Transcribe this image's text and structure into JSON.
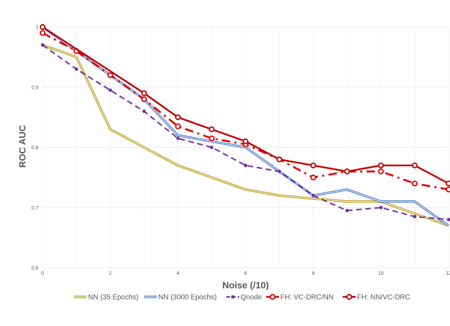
{
  "chart_data": {
    "type": "line",
    "title": "",
    "xlabel": "Noise (/10)",
    "ylabel": "ROC AUC",
    "xlim": [
      0,
      12
    ],
    "ylim": [
      0.6,
      1.0
    ],
    "x_ticks": [
      0,
      2,
      4,
      6,
      8,
      10,
      12
    ],
    "y_ticks": [
      0.6,
      0.7,
      0.8,
      0.9,
      1.0
    ],
    "y_tick_labels": [
      "0.6",
      "0.7",
      "0.8",
      "0.9",
      "1"
    ],
    "grid": true,
    "legend_position": "bottom",
    "series": [
      {
        "name": "NN (35 Epochs)",
        "color": "#b8960c",
        "style": "double",
        "x": [
          0,
          1,
          2,
          3,
          4,
          5,
          6,
          7,
          8,
          9,
          10,
          11,
          12
        ],
        "values": [
          0.97,
          0.95,
          0.83,
          0.8,
          0.77,
          0.75,
          0.73,
          0.72,
          0.715,
          0.71,
          0.71,
          0.69,
          0.67
        ]
      },
      {
        "name": "NN (3000 Epochs)",
        "color": "#4472c4",
        "style": "double",
        "x": [
          0,
          1,
          2,
          3,
          4,
          5,
          6,
          7,
          8,
          9,
          10,
          11,
          12
        ],
        "values": [
          1.0,
          0.96,
          0.92,
          0.88,
          0.82,
          0.81,
          0.8,
          0.76,
          0.72,
          0.73,
          0.71,
          0.71,
          0.67
        ]
      },
      {
        "name": "Qnode",
        "color": "#7030a0",
        "style": "dashed-dots",
        "x": [
          0,
          1,
          2,
          3,
          4,
          5,
          6,
          7,
          8,
          9,
          10,
          11,
          12
        ],
        "values": [
          0.97,
          0.93,
          0.895,
          0.86,
          0.815,
          0.8,
          0.77,
          0.76,
          0.72,
          0.695,
          0.7,
          0.685,
          0.68
        ]
      },
      {
        "name": "FH: VC-DRC/NN",
        "color": "#e00000",
        "style": "dash-dot-markers",
        "x": [
          0,
          1,
          2,
          3,
          4,
          5,
          6,
          7,
          8,
          9,
          10,
          11,
          12
        ],
        "values": [
          0.99,
          0.96,
          0.92,
          0.88,
          0.835,
          0.815,
          0.805,
          0.78,
          0.75,
          0.76,
          0.76,
          0.74,
          0.73
        ]
      },
      {
        "name": "FH: NN/VC-DRC",
        "color": "#c00000",
        "style": "solid-markers",
        "x": [
          0,
          3,
          4,
          5,
          6,
          7,
          8,
          9,
          10,
          11,
          12
        ],
        "values": [
          1.0,
          0.89,
          0.85,
          0.83,
          0.81,
          0.78,
          0.77,
          0.76,
          0.77,
          0.77,
          0.74
        ]
      }
    ]
  }
}
